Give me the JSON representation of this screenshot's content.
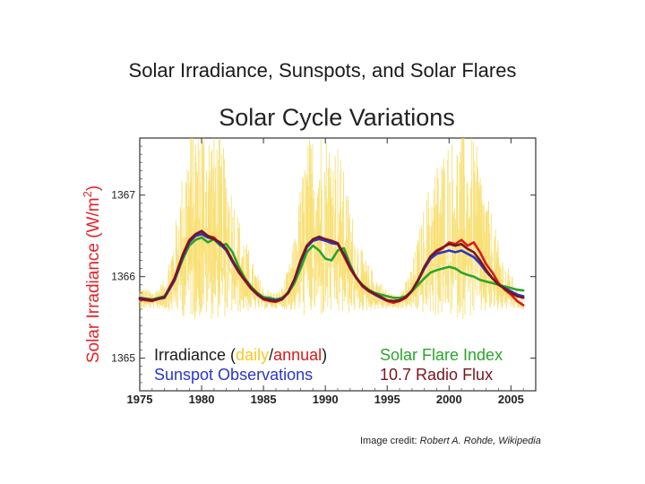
{
  "slide": {
    "title": "Solar Irradiance, Sunspots, and Solar Flares",
    "credit_prefix": "Image credit: ",
    "credit_source": "Robert A. Rohde, Wikipedia"
  },
  "chart_data": {
    "type": "line",
    "title": "Solar Cycle Variations",
    "ylabel_main": "Solar Irradiance (W/m",
    "ylabel_sup": "2",
    "ylabel_close": ")",
    "xlim": [
      1975,
      2007
    ],
    "ylim": [
      1364.6,
      1367.7
    ],
    "xticks": [
      "1975",
      "1980",
      "1985",
      "1990",
      "1995",
      "2000",
      "2005"
    ],
    "yticks": [
      "1365",
      "1366",
      "1367"
    ],
    "legend": {
      "irradiance_label": "Irradiance (",
      "daily_label": "daily",
      "slash": "/",
      "annual_label": "annual",
      "close_paren": ")",
      "flare_label": "Solar Flare Index",
      "sunspot_label": "Sunspot Observations",
      "radio_label": "10.7 Radio Flux"
    },
    "colors": {
      "daily": "#f6d33c",
      "annual": "#d91a1a",
      "flare": "#2aa52a",
      "sunspot": "#2a36c8",
      "radio": "#7a1420",
      "title": "#222222",
      "ylabel": "#e0242a"
    },
    "series": [
      {
        "key": "annual",
        "x": [
          1975.0,
          1976.0,
          1977.0,
          1977.8,
          1978.5,
          1979.0,
          1979.5,
          1980.0,
          1980.5,
          1981.0,
          1981.5,
          1982.0,
          1982.5,
          1983.0,
          1983.5,
          1984.0,
          1984.5,
          1985.0,
          1985.5,
          1986.0,
          1986.5,
          1987.0,
          1987.5,
          1988.0,
          1988.5,
          1989.0,
          1989.5,
          1990.0,
          1990.5,
          1991.0,
          1991.5,
          1992.0,
          1992.5,
          1993.0,
          1993.5,
          1994.0,
          1994.5,
          1995.0,
          1995.5,
          1996.0,
          1996.5,
          1997.0,
          1997.5,
          1998.0,
          1998.5,
          1999.0,
          1999.5,
          2000.0,
          2000.5,
          2001.0,
          2001.5,
          2002.0,
          2002.5,
          2003.0,
          2003.5,
          2004.0,
          2004.5,
          2005.0,
          2005.5,
          2006.0
        ],
        "values": [
          1365.72,
          1365.7,
          1365.75,
          1365.98,
          1366.28,
          1366.45,
          1366.52,
          1366.55,
          1366.5,
          1366.48,
          1366.4,
          1366.32,
          1366.18,
          1366.05,
          1365.95,
          1365.85,
          1365.78,
          1365.72,
          1365.7,
          1365.69,
          1365.72,
          1365.8,
          1365.95,
          1366.2,
          1366.38,
          1366.45,
          1366.48,
          1366.45,
          1366.42,
          1366.4,
          1366.25,
          1366.1,
          1365.98,
          1365.88,
          1365.82,
          1365.78,
          1365.74,
          1365.7,
          1365.68,
          1365.7,
          1365.74,
          1365.82,
          1365.95,
          1366.1,
          1366.22,
          1366.3,
          1366.35,
          1366.42,
          1366.4,
          1366.45,
          1366.38,
          1366.42,
          1366.3,
          1366.15,
          1366.05,
          1365.92,
          1365.84,
          1365.78,
          1365.7,
          1365.65
        ]
      },
      {
        "key": "flare",
        "x": [
          1975.0,
          1976.0,
          1977.0,
          1977.8,
          1978.5,
          1979.0,
          1979.5,
          1980.0,
          1980.5,
          1981.0,
          1981.5,
          1982.0,
          1982.5,
          1983.0,
          1983.5,
          1984.0,
          1984.5,
          1985.0,
          1985.5,
          1986.0,
          1986.5,
          1987.0,
          1987.5,
          1988.0,
          1988.5,
          1989.0,
          1989.5,
          1990.0,
          1990.5,
          1991.0,
          1991.5,
          1992.0,
          1992.5,
          1993.0,
          1993.5,
          1994.0,
          1994.5,
          1995.0,
          1995.5,
          1996.0,
          1996.5,
          1997.0,
          1997.5,
          1998.0,
          1998.5,
          1999.0,
          1999.5,
          2000.0,
          2000.5,
          2001.0,
          2001.5,
          2002.0,
          2002.5,
          2003.0,
          2003.5,
          2004.0,
          2004.5,
          2005.0,
          2005.5,
          2006.0
        ],
        "values": [
          1365.74,
          1365.72,
          1365.76,
          1365.95,
          1366.22,
          1366.38,
          1366.45,
          1366.48,
          1366.42,
          1366.46,
          1366.38,
          1366.4,
          1366.3,
          1366.12,
          1365.98,
          1365.88,
          1365.8,
          1365.75,
          1365.74,
          1365.72,
          1365.74,
          1365.8,
          1365.92,
          1366.1,
          1366.3,
          1366.38,
          1366.32,
          1366.22,
          1366.2,
          1366.32,
          1366.35,
          1366.15,
          1365.98,
          1365.9,
          1365.84,
          1365.8,
          1365.78,
          1365.76,
          1365.74,
          1365.74,
          1365.76,
          1365.82,
          1365.9,
          1365.98,
          1366.05,
          1366.08,
          1366.1,
          1366.12,
          1366.1,
          1366.05,
          1366.02,
          1366.0,
          1365.96,
          1365.94,
          1365.92,
          1365.9,
          1365.88,
          1365.86,
          1365.84,
          1365.83
        ]
      },
      {
        "key": "sunspot",
        "x": [
          1975.0,
          1976.0,
          1977.0,
          1977.8,
          1978.5,
          1979.0,
          1979.5,
          1980.0,
          1980.5,
          1981.0,
          1981.5,
          1982.0,
          1982.5,
          1983.0,
          1983.5,
          1984.0,
          1984.5,
          1985.0,
          1985.5,
          1986.0,
          1986.5,
          1987.0,
          1987.5,
          1988.0,
          1988.5,
          1989.0,
          1989.5,
          1990.0,
          1990.5,
          1991.0,
          1991.5,
          1992.0,
          1992.5,
          1993.0,
          1993.5,
          1994.0,
          1994.5,
          1995.0,
          1995.5,
          1996.0,
          1996.5,
          1997.0,
          1997.5,
          1998.0,
          1998.5,
          1999.0,
          1999.5,
          2000.0,
          2000.5,
          2001.0,
          2001.5,
          2002.0,
          2002.5,
          2003.0,
          2003.5,
          2004.0,
          2004.5,
          2005.0,
          2005.5,
          2006.0
        ],
        "values": [
          1365.74,
          1365.71,
          1365.74,
          1365.95,
          1366.25,
          1366.42,
          1366.5,
          1366.52,
          1366.48,
          1366.46,
          1366.4,
          1366.32,
          1366.18,
          1366.06,
          1365.96,
          1365.86,
          1365.78,
          1365.73,
          1365.72,
          1365.71,
          1365.73,
          1365.8,
          1365.96,
          1366.18,
          1366.36,
          1366.44,
          1366.46,
          1366.44,
          1366.41,
          1366.4,
          1366.28,
          1366.12,
          1365.99,
          1365.89,
          1365.83,
          1365.78,
          1365.74,
          1365.71,
          1365.7,
          1365.71,
          1365.75,
          1365.83,
          1365.96,
          1366.1,
          1366.22,
          1366.28,
          1366.3,
          1366.32,
          1366.3,
          1366.32,
          1366.28,
          1366.24,
          1366.16,
          1366.06,
          1365.98,
          1365.9,
          1365.86,
          1365.82,
          1365.78,
          1365.76
        ]
      },
      {
        "key": "radio",
        "x": [
          1975.0,
          1976.0,
          1977.0,
          1977.8,
          1978.5,
          1979.0,
          1979.5,
          1980.0,
          1980.5,
          1981.0,
          1981.5,
          1982.0,
          1982.5,
          1983.0,
          1983.5,
          1984.0,
          1984.5,
          1985.0,
          1985.5,
          1986.0,
          1986.5,
          1987.0,
          1987.5,
          1988.0,
          1988.5,
          1989.0,
          1989.5,
          1990.0,
          1990.5,
          1991.0,
          1991.5,
          1992.0,
          1992.5,
          1993.0,
          1993.5,
          1994.0,
          1994.5,
          1995.0,
          1995.5,
          1996.0,
          1996.5,
          1997.0,
          1997.5,
          1998.0,
          1998.5,
          1999.0,
          1999.5,
          2000.0,
          2000.5,
          2001.0,
          2001.5,
          2002.0,
          2002.5,
          2003.0,
          2003.5,
          2004.0,
          2004.5,
          2005.0,
          2005.5,
          2006.0
        ],
        "values": [
          1365.73,
          1365.71,
          1365.75,
          1365.97,
          1366.27,
          1366.44,
          1366.52,
          1366.56,
          1366.5,
          1366.46,
          1366.42,
          1366.34,
          1366.2,
          1366.07,
          1365.96,
          1365.86,
          1365.79,
          1365.73,
          1365.71,
          1365.7,
          1365.72,
          1365.81,
          1365.97,
          1366.2,
          1366.38,
          1366.46,
          1366.49,
          1366.46,
          1366.44,
          1366.41,
          1366.27,
          1366.11,
          1365.99,
          1365.89,
          1365.83,
          1365.79,
          1365.75,
          1365.71,
          1365.7,
          1365.71,
          1365.75,
          1365.83,
          1365.96,
          1366.12,
          1366.25,
          1366.32,
          1366.36,
          1366.4,
          1366.38,
          1366.4,
          1366.34,
          1366.3,
          1366.2,
          1366.08,
          1365.98,
          1365.9,
          1365.85,
          1365.8,
          1365.76,
          1365.74
        ]
      }
    ]
  }
}
